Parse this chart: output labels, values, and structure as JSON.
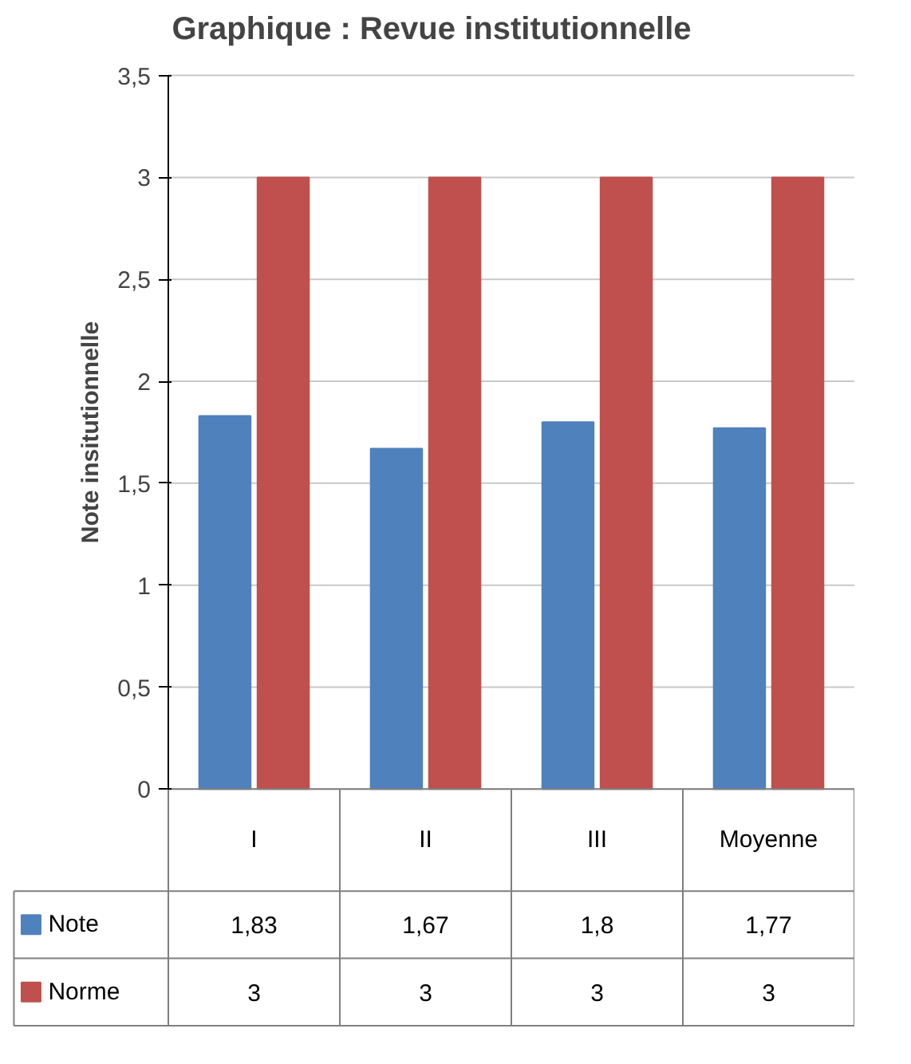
{
  "chart_data": {
    "type": "bar",
    "title": "Graphique : Revue institutionnelle",
    "ylabel": "Note insitutionnelle",
    "categories": [
      "I",
      "II",
      "III",
      "Moyenne"
    ],
    "series": [
      {
        "name": "Note",
        "color": "#4f81bd",
        "values": [
          1.83,
          1.67,
          1.8,
          1.77
        ],
        "value_labels": [
          "1,83",
          "1,67",
          "1,8",
          "1,77"
        ]
      },
      {
        "name": "Norme",
        "color": "#c0504d",
        "values": [
          3,
          3,
          3,
          3
        ],
        "value_labels": [
          "3",
          "3",
          "3",
          "3"
        ]
      }
    ],
    "ylim": [
      0,
      3.5
    ],
    "yticks": [
      0,
      {
        "value": 0.5,
        "label": "0,5"
      },
      1,
      {
        "value": 1.5,
        "label": "1,5"
      },
      2,
      {
        "value": 2.5,
        "label": "2,5"
      },
      3,
      {
        "value": 3.5,
        "label": "3,5"
      }
    ],
    "grid": "y",
    "legend": "bottom"
  }
}
